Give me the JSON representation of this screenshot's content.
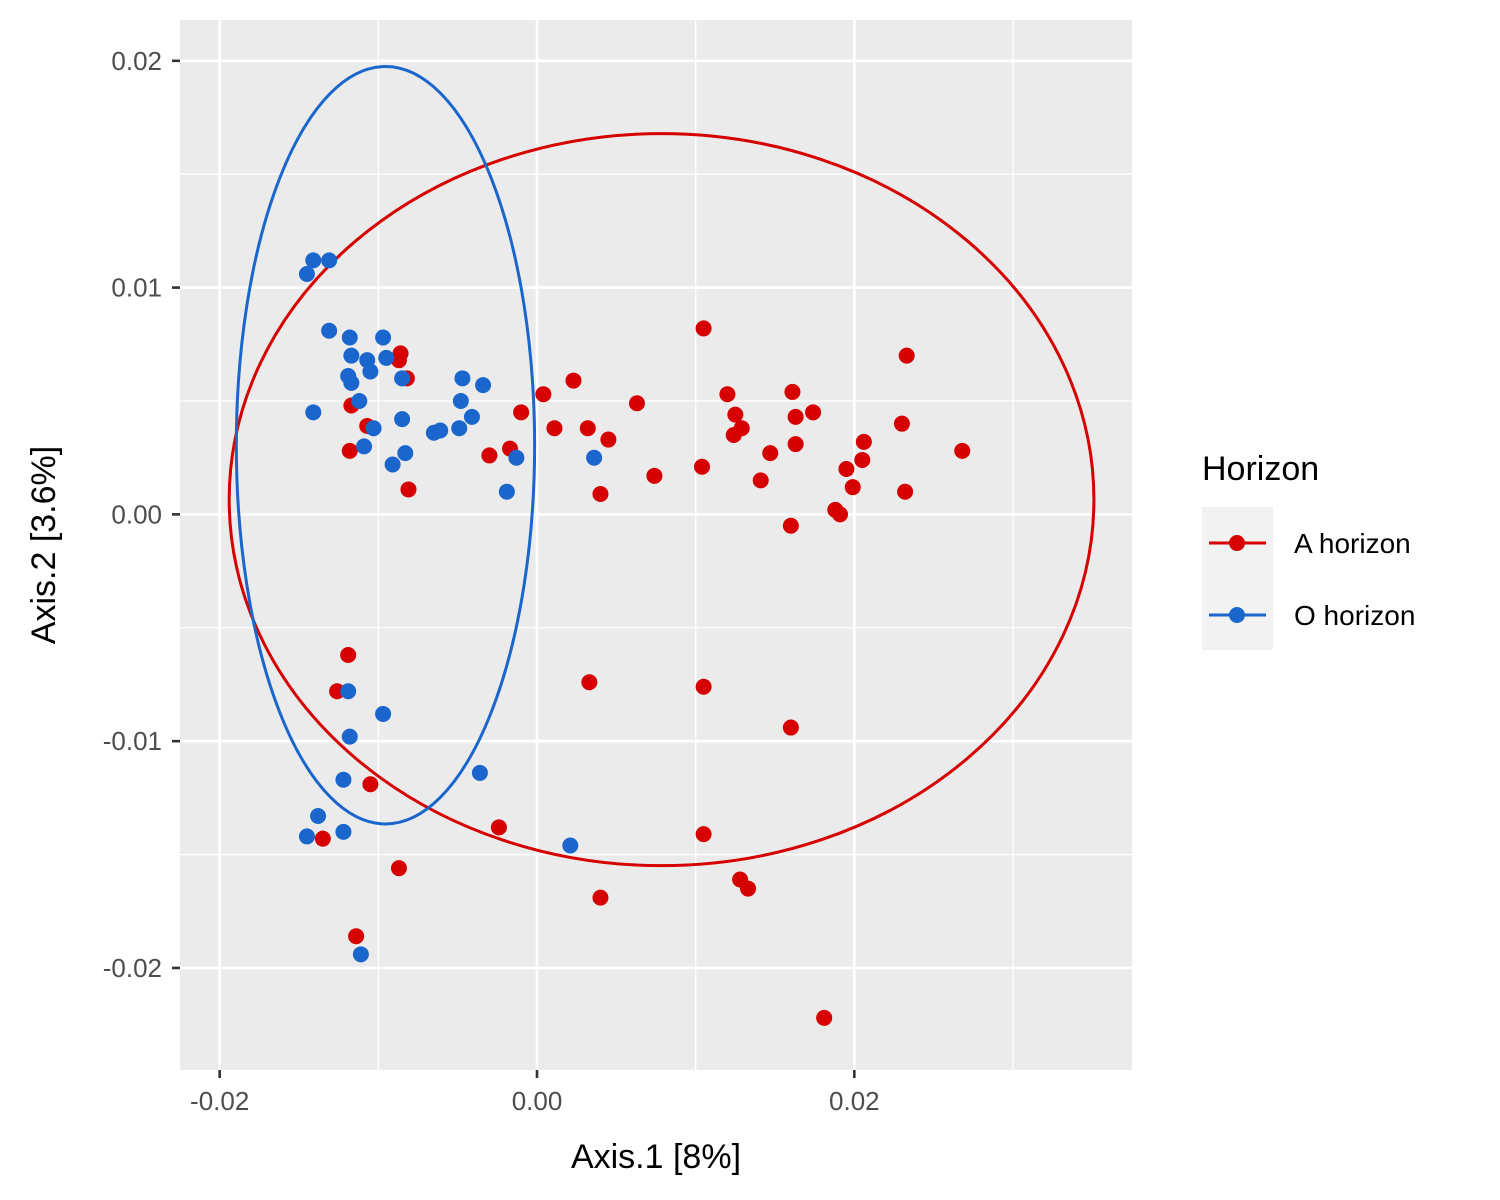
{
  "chart_data": {
    "type": "scatter",
    "title": "",
    "xlabel": "Axis.1   [8%]",
    "ylabel": "Axis.2   [3.6%]",
    "xlim": [
      -0.0225,
      0.0375
    ],
    "ylim": [
      -0.0245,
      0.0218
    ],
    "x_ticks": [
      -0.02,
      0.0,
      0.02
    ],
    "x_tick_labels": [
      "-0.02",
      "0.00",
      "0.02"
    ],
    "y_ticks": [
      -0.02,
      -0.01,
      0.0,
      0.01,
      0.02
    ],
    "y_tick_labels": [
      "-0.02",
      "-0.01",
      "0.00",
      "0.01",
      "0.02"
    ],
    "grid": true,
    "legend": {
      "title": "Horizon",
      "position": "right"
    },
    "series": [
      {
        "name": "A horizon",
        "color": "#d60000",
        "ellipse": {
          "cx": 0.00785,
          "cy": 0.00065,
          "rx": 0.02725,
          "ry": 0.01614
        },
        "points": [
          [
            0.0105,
            0.0082
          ],
          [
            0.0233,
            0.007
          ],
          [
            0.0268,
            0.0028
          ],
          [
            0.023,
            0.004
          ],
          [
            0.0232,
            0.001
          ],
          [
            0.0206,
            0.0032
          ],
          [
            0.0205,
            0.0024
          ],
          [
            0.0195,
            0.002
          ],
          [
            0.0199,
            0.0012
          ],
          [
            0.0188,
            0.0002
          ],
          [
            0.0191,
            0.0
          ],
          [
            0.0174,
            0.0045
          ],
          [
            0.0161,
            0.0054
          ],
          [
            0.0163,
            0.0043
          ],
          [
            0.0163,
            0.0031
          ],
          [
            0.016,
            -0.0005
          ],
          [
            0.0147,
            0.0027
          ],
          [
            0.0141,
            0.0015
          ],
          [
            0.012,
            0.0053
          ],
          [
            0.0125,
            0.0044
          ],
          [
            0.0129,
            0.0038
          ],
          [
            0.0124,
            0.0035
          ],
          [
            0.0104,
            0.0021
          ],
          [
            0.0074,
            0.0017
          ],
          [
            0.0063,
            0.0049
          ],
          [
            0.0045,
            0.0033
          ],
          [
            0.004,
            0.0009
          ],
          [
            0.0032,
            0.0038
          ],
          [
            0.0023,
            0.0059
          ],
          [
            0.0011,
            0.0038
          ],
          [
            0.0004,
            0.0053
          ],
          [
            -0.001,
            0.0045
          ],
          [
            -0.0017,
            0.0029
          ],
          [
            -0.003,
            0.0026
          ],
          [
            -0.0086,
            0.0071
          ],
          [
            -0.0087,
            0.0068
          ],
          [
            -0.0082,
            0.006
          ],
          [
            -0.0117,
            0.0048
          ],
          [
            -0.0107,
            0.0039
          ],
          [
            -0.0118,
            0.0028
          ],
          [
            -0.0081,
            0.0011
          ],
          [
            -0.0119,
            -0.0062
          ],
          [
            -0.0126,
            -0.0078
          ],
          [
            -0.0105,
            -0.0119
          ],
          [
            -0.0135,
            -0.0143
          ],
          [
            -0.0087,
            -0.0156
          ],
          [
            -0.0114,
            -0.0186
          ],
          [
            -0.0024,
            -0.0138
          ],
          [
            0.0033,
            -0.0074
          ],
          [
            0.0105,
            -0.0076
          ],
          [
            0.016,
            -0.0094
          ],
          [
            0.0105,
            -0.0141
          ],
          [
            0.0128,
            -0.0161
          ],
          [
            0.0133,
            -0.0165
          ],
          [
            0.004,
            -0.0169
          ],
          [
            0.0181,
            -0.0222
          ]
        ]
      },
      {
        "name": "O horizon",
        "color": "#1a66cc",
        "ellipse": {
          "cx": -0.00955,
          "cy": 0.00305,
          "rx": 0.0094,
          "ry": 0.0167
        },
        "points": [
          [
            -0.0145,
            0.0106
          ],
          [
            -0.0141,
            0.0112
          ],
          [
            -0.0131,
            0.0112
          ],
          [
            -0.0131,
            0.0081
          ],
          [
            -0.0118,
            0.0078
          ],
          [
            -0.0097,
            0.0078
          ],
          [
            -0.0117,
            0.007
          ],
          [
            -0.0107,
            0.0068
          ],
          [
            -0.0095,
            0.0069
          ],
          [
            -0.0105,
            0.0063
          ],
          [
            -0.0119,
            0.0061
          ],
          [
            -0.0117,
            0.0058
          ],
          [
            -0.0085,
            0.006
          ],
          [
            -0.0047,
            0.006
          ],
          [
            -0.0034,
            0.0057
          ],
          [
            -0.0112,
            0.005
          ],
          [
            -0.0048,
            0.005
          ],
          [
            -0.0141,
            0.0045
          ],
          [
            -0.0085,
            0.0042
          ],
          [
            -0.0041,
            0.0043
          ],
          [
            -0.0103,
            0.0038
          ],
          [
            -0.0065,
            0.0036
          ],
          [
            -0.0061,
            0.0037
          ],
          [
            -0.0049,
            0.0038
          ],
          [
            -0.0109,
            0.003
          ],
          [
            -0.0083,
            0.0027
          ],
          [
            -0.0091,
            0.0022
          ],
          [
            -0.0013,
            0.0025
          ],
          [
            0.0036,
            0.0025
          ],
          [
            -0.0019,
            0.001
          ],
          [
            -0.0119,
            -0.0078
          ],
          [
            -0.0097,
            -0.0088
          ],
          [
            -0.0118,
            -0.0098
          ],
          [
            -0.0122,
            -0.0117
          ],
          [
            -0.0036,
            -0.0114
          ],
          [
            -0.0138,
            -0.0133
          ],
          [
            -0.0145,
            -0.0142
          ],
          [
            -0.0122,
            -0.014
          ],
          [
            0.0021,
            -0.0146
          ],
          [
            -0.0111,
            -0.0194
          ]
        ]
      }
    ]
  }
}
